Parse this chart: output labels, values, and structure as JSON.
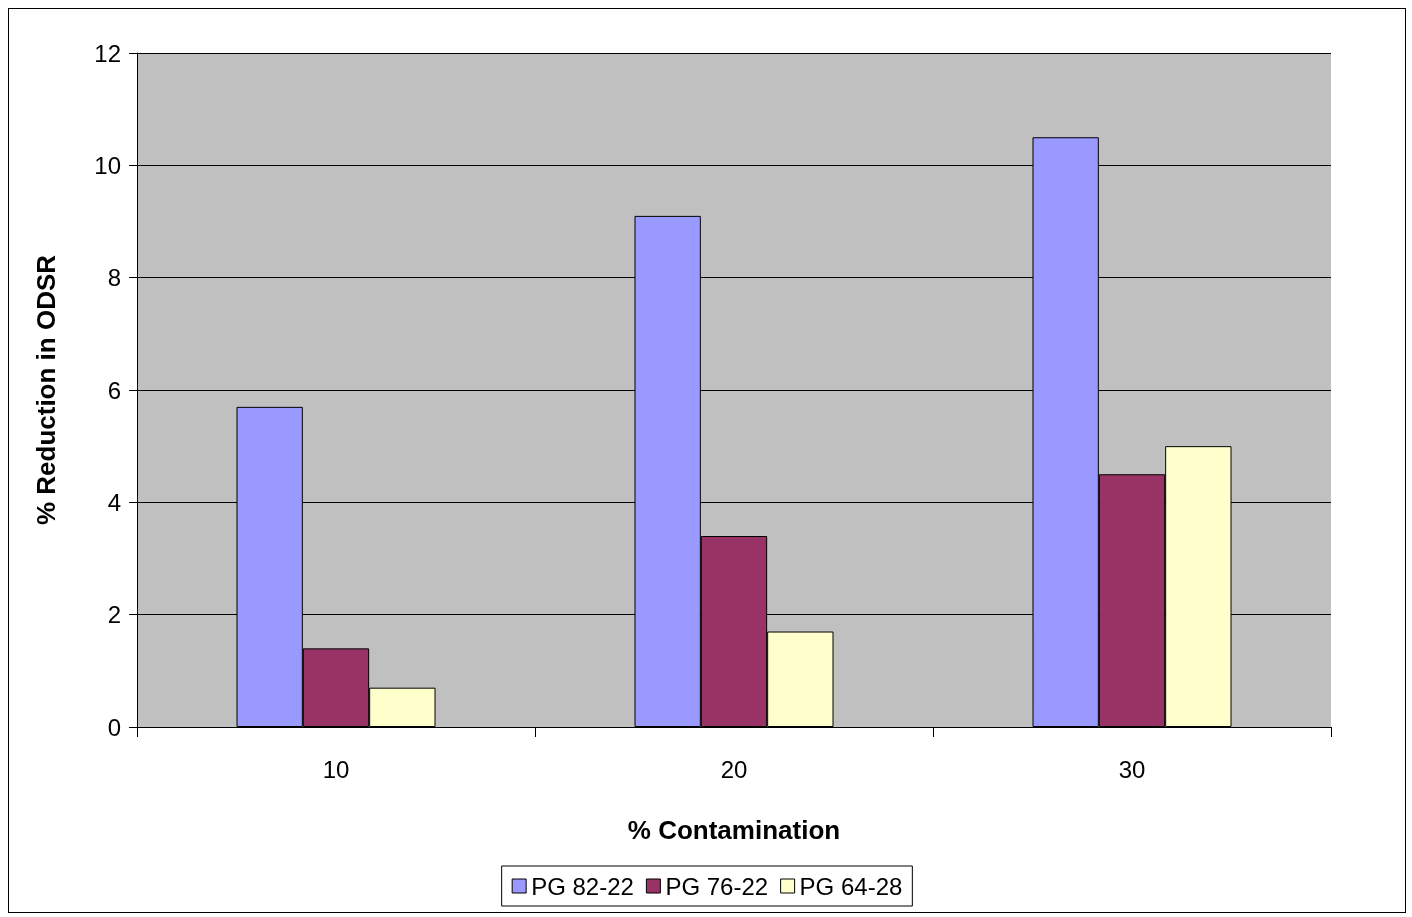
{
  "chart_data": {
    "type": "bar",
    "xlabel": "% Contamination",
    "ylabel": "% Reduction in ODSR",
    "categories": [
      "10",
      "20",
      "30"
    ],
    "series": [
      {
        "name": "PG 82-22",
        "color": "#9999ff",
        "values": [
          5.7,
          9.1,
          10.5
        ]
      },
      {
        "name": "PG 76-22",
        "color": "#993366",
        "values": [
          1.4,
          3.4,
          4.5
        ]
      },
      {
        "name": "PG 64-28",
        "color": "#ffffcc",
        "values": [
          0.7,
          1.7,
          5.0
        ]
      }
    ],
    "ylim": [
      0,
      12
    ],
    "yticks": [
      0,
      2,
      4,
      6,
      8,
      10,
      12
    ],
    "grid": "y",
    "legend": "bottom"
  }
}
